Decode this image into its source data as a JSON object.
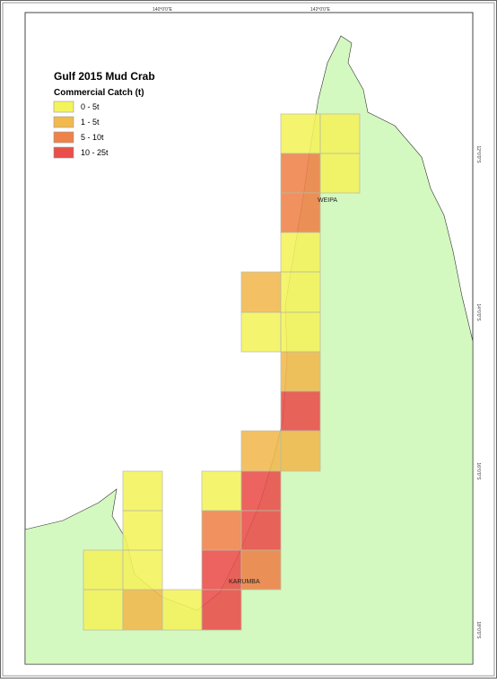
{
  "title": "Gulf 2015 Mud Crab",
  "legend": {
    "title": "Commercial Catch (t)",
    "items": [
      {
        "label": "0 - 5t",
        "color": "#f4f35c"
      },
      {
        "label": "1 - 5t",
        "color": "#f2b94e"
      },
      {
        "label": "5 - 10t",
        "color": "#ee8249"
      },
      {
        "label": "10 - 25t",
        "color": "#ea4e4a"
      }
    ]
  },
  "places": [
    "WEIPA",
    "KARUMBA"
  ],
  "graticule": {
    "longitudes": [
      "140°0'0\"E",
      "142°0'0\"E"
    ],
    "latitudes": [
      "12°0'0\"S",
      "14°0'0\"S",
      "16°0'0\"S",
      "18°0'0\"S"
    ]
  }
}
